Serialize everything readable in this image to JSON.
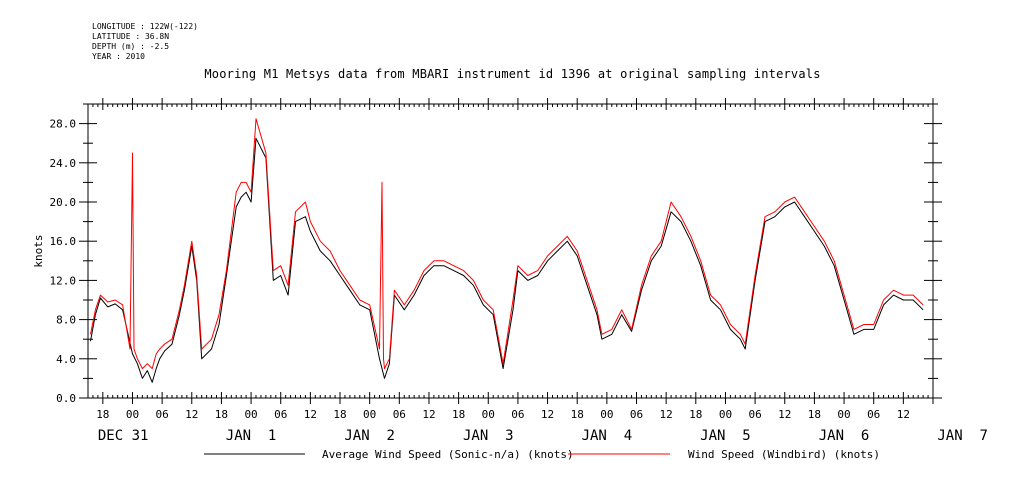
{
  "header": {
    "longitude": "LONGITUDE : 122W(-122)",
    "latitude": "LATITUDE : 36.8N",
    "depth": "DEPTH (m) : -2.5",
    "year": "YEAR : 2010"
  },
  "chart_data": {
    "type": "line",
    "title": "Mooring M1 Metsys data from MBARI instrument id 1396 at original sampling intervals",
    "ylabel": "knots",
    "xlabel": "",
    "ylim": [
      0,
      30
    ],
    "xlim_hours": [
      -9,
      162
    ],
    "x_unit": "hours since DEC 31 00:00",
    "y_ticks": [
      "0.0",
      "4.0",
      "8.0",
      "12.0",
      "16.0",
      "20.0",
      "24.0",
      "28.0"
    ],
    "hour_ticks": [
      "18",
      "00",
      "06",
      "12",
      "18",
      "00",
      "06",
      "12",
      "18",
      "00",
      "06",
      "12",
      "18",
      "00",
      "06",
      "12",
      "18",
      "00",
      "06",
      "12",
      "18",
      "00",
      "06",
      "12",
      "18",
      "00",
      "06",
      "12"
    ],
    "day_labels": [
      "DEC 31",
      "JAN  1",
      "JAN  2",
      "JAN  3",
      "JAN  4",
      "JAN  5",
      "JAN  6",
      "JAN  7"
    ],
    "legend_position": "bottom",
    "grid": false,
    "series": [
      {
        "name": "Average Wind Speed (Sonic-n/a) (knots)",
        "color": "#000000",
        "x": [
          -8.5,
          -7.5,
          -6.5,
          -5,
          -3.5,
          -2,
          0,
          1,
          2,
          3,
          4,
          4.8,
          5.5,
          6.5,
          8,
          9.5,
          10.5,
          12,
          13,
          14,
          16,
          17.5,
          19,
          20,
          21,
          22,
          23,
          24,
          25,
          27,
          28.5,
          30,
          31.5,
          33,
          35,
          36,
          38,
          40,
          42,
          44,
          46,
          48,
          50,
          51,
          52,
          53,
          55,
          57,
          59,
          61,
          63,
          65,
          67,
          69,
          71,
          73,
          75,
          77,
          78,
          80,
          82,
          84,
          86,
          88,
          90,
          92,
          94,
          95,
          97,
          99,
          101,
          103,
          105,
          107,
          109,
          111,
          113,
          115,
          117,
          119,
          121,
          123,
          124,
          126,
          128,
          130,
          132,
          134,
          136,
          138,
          140,
          142,
          144,
          146,
          148,
          150,
          152,
          154,
          156,
          158,
          160
        ],
        "y": [
          5.8,
          8.5,
          10.2,
          9.3,
          9.6,
          9.0,
          4.5,
          3.5,
          2.0,
          2.8,
          1.6,
          3.0,
          4.0,
          4.8,
          5.5,
          8.5,
          11.0,
          15.5,
          12.0,
          4.0,
          5.0,
          7.5,
          12.5,
          16.0,
          19.5,
          20.5,
          21.0,
          20.0,
          26.5,
          24.5,
          12.0,
          12.5,
          10.5,
          18.0,
          18.5,
          17.0,
          15.0,
          14.0,
          12.5,
          11.0,
          9.5,
          9.0,
          4.0,
          2.0,
          3.5,
          10.5,
          9.0,
          10.5,
          12.5,
          13.5,
          13.5,
          13.0,
          12.5,
          11.5,
          9.5,
          8.5,
          3.0,
          9.0,
          13.0,
          12.0,
          12.5,
          14.0,
          15.0,
          16.0,
          14.5,
          11.5,
          8.5,
          6.0,
          6.5,
          8.5,
          6.8,
          11.0,
          14.0,
          15.5,
          19.0,
          18.0,
          16.0,
          13.5,
          10.0,
          9.0,
          7.0,
          6.0,
          5.0,
          12.0,
          18.0,
          18.5,
          19.5,
          20.0,
          18.5,
          17.0,
          15.5,
          13.5,
          10.0,
          6.5,
          7.0,
          7.0,
          9.5,
          10.5,
          10.0,
          10.0,
          9.0
        ]
      },
      {
        "name": "Wind Speed (Windbird) (knots)",
        "color": "#ff0000",
        "x": [
          -8.5,
          -7.5,
          -6.5,
          -5,
          -3.5,
          -2,
          -0.5,
          0,
          0.3,
          1,
          2,
          3,
          4,
          4.8,
          5.5,
          6.5,
          8,
          9.5,
          10.5,
          12,
          13,
          14,
          16,
          17.5,
          19,
          20,
          21,
          22,
          23,
          24,
          25,
          27,
          28.5,
          30,
          31.5,
          33,
          35,
          36,
          38,
          40,
          42,
          44,
          46,
          48,
          50,
          50.5,
          50.8,
          51,
          52,
          53,
          55,
          57,
          59,
          61,
          63,
          65,
          67,
          69,
          71,
          73,
          75,
          77,
          78,
          80,
          82,
          84,
          86,
          88,
          90,
          92,
          94,
          95,
          97,
          99,
          101,
          103,
          105,
          107,
          109,
          111,
          113,
          115,
          117,
          119,
          121,
          123,
          124,
          126,
          128,
          130,
          132,
          134,
          136,
          138,
          140,
          142,
          144,
          146,
          148,
          150,
          152,
          154,
          156,
          158,
          160
        ],
        "y": [
          6.5,
          9.0,
          10.5,
          9.8,
          10.0,
          9.5,
          5.0,
          25.0,
          5.0,
          4.0,
          3.0,
          3.5,
          3.0,
          4.5,
          5.0,
          5.5,
          6.0,
          9.0,
          11.5,
          16.0,
          12.5,
          5.0,
          6.0,
          8.5,
          13.0,
          17.0,
          21.0,
          22.0,
          22.0,
          21.0,
          28.5,
          25.0,
          13.0,
          13.5,
          11.5,
          19.0,
          20.0,
          18.0,
          16.0,
          15.0,
          13.0,
          11.5,
          10.0,
          9.5,
          5.0,
          22.0,
          4.0,
          3.0,
          4.0,
          11.0,
          9.5,
          11.0,
          13.0,
          14.0,
          14.0,
          13.5,
          13.0,
          12.0,
          10.0,
          9.0,
          3.5,
          10.0,
          13.5,
          12.5,
          13.0,
          14.5,
          15.5,
          16.5,
          15.0,
          12.0,
          9.0,
          6.5,
          7.0,
          9.0,
          7.0,
          11.5,
          14.5,
          16.0,
          20.0,
          18.5,
          16.5,
          14.0,
          10.5,
          9.5,
          7.5,
          6.5,
          5.5,
          12.5,
          18.5,
          19.0,
          20.0,
          20.5,
          19.0,
          17.5,
          16.0,
          14.0,
          10.5,
          7.0,
          7.5,
          7.5,
          10.0,
          11.0,
          10.5,
          10.5,
          9.5
        ]
      }
    ]
  }
}
